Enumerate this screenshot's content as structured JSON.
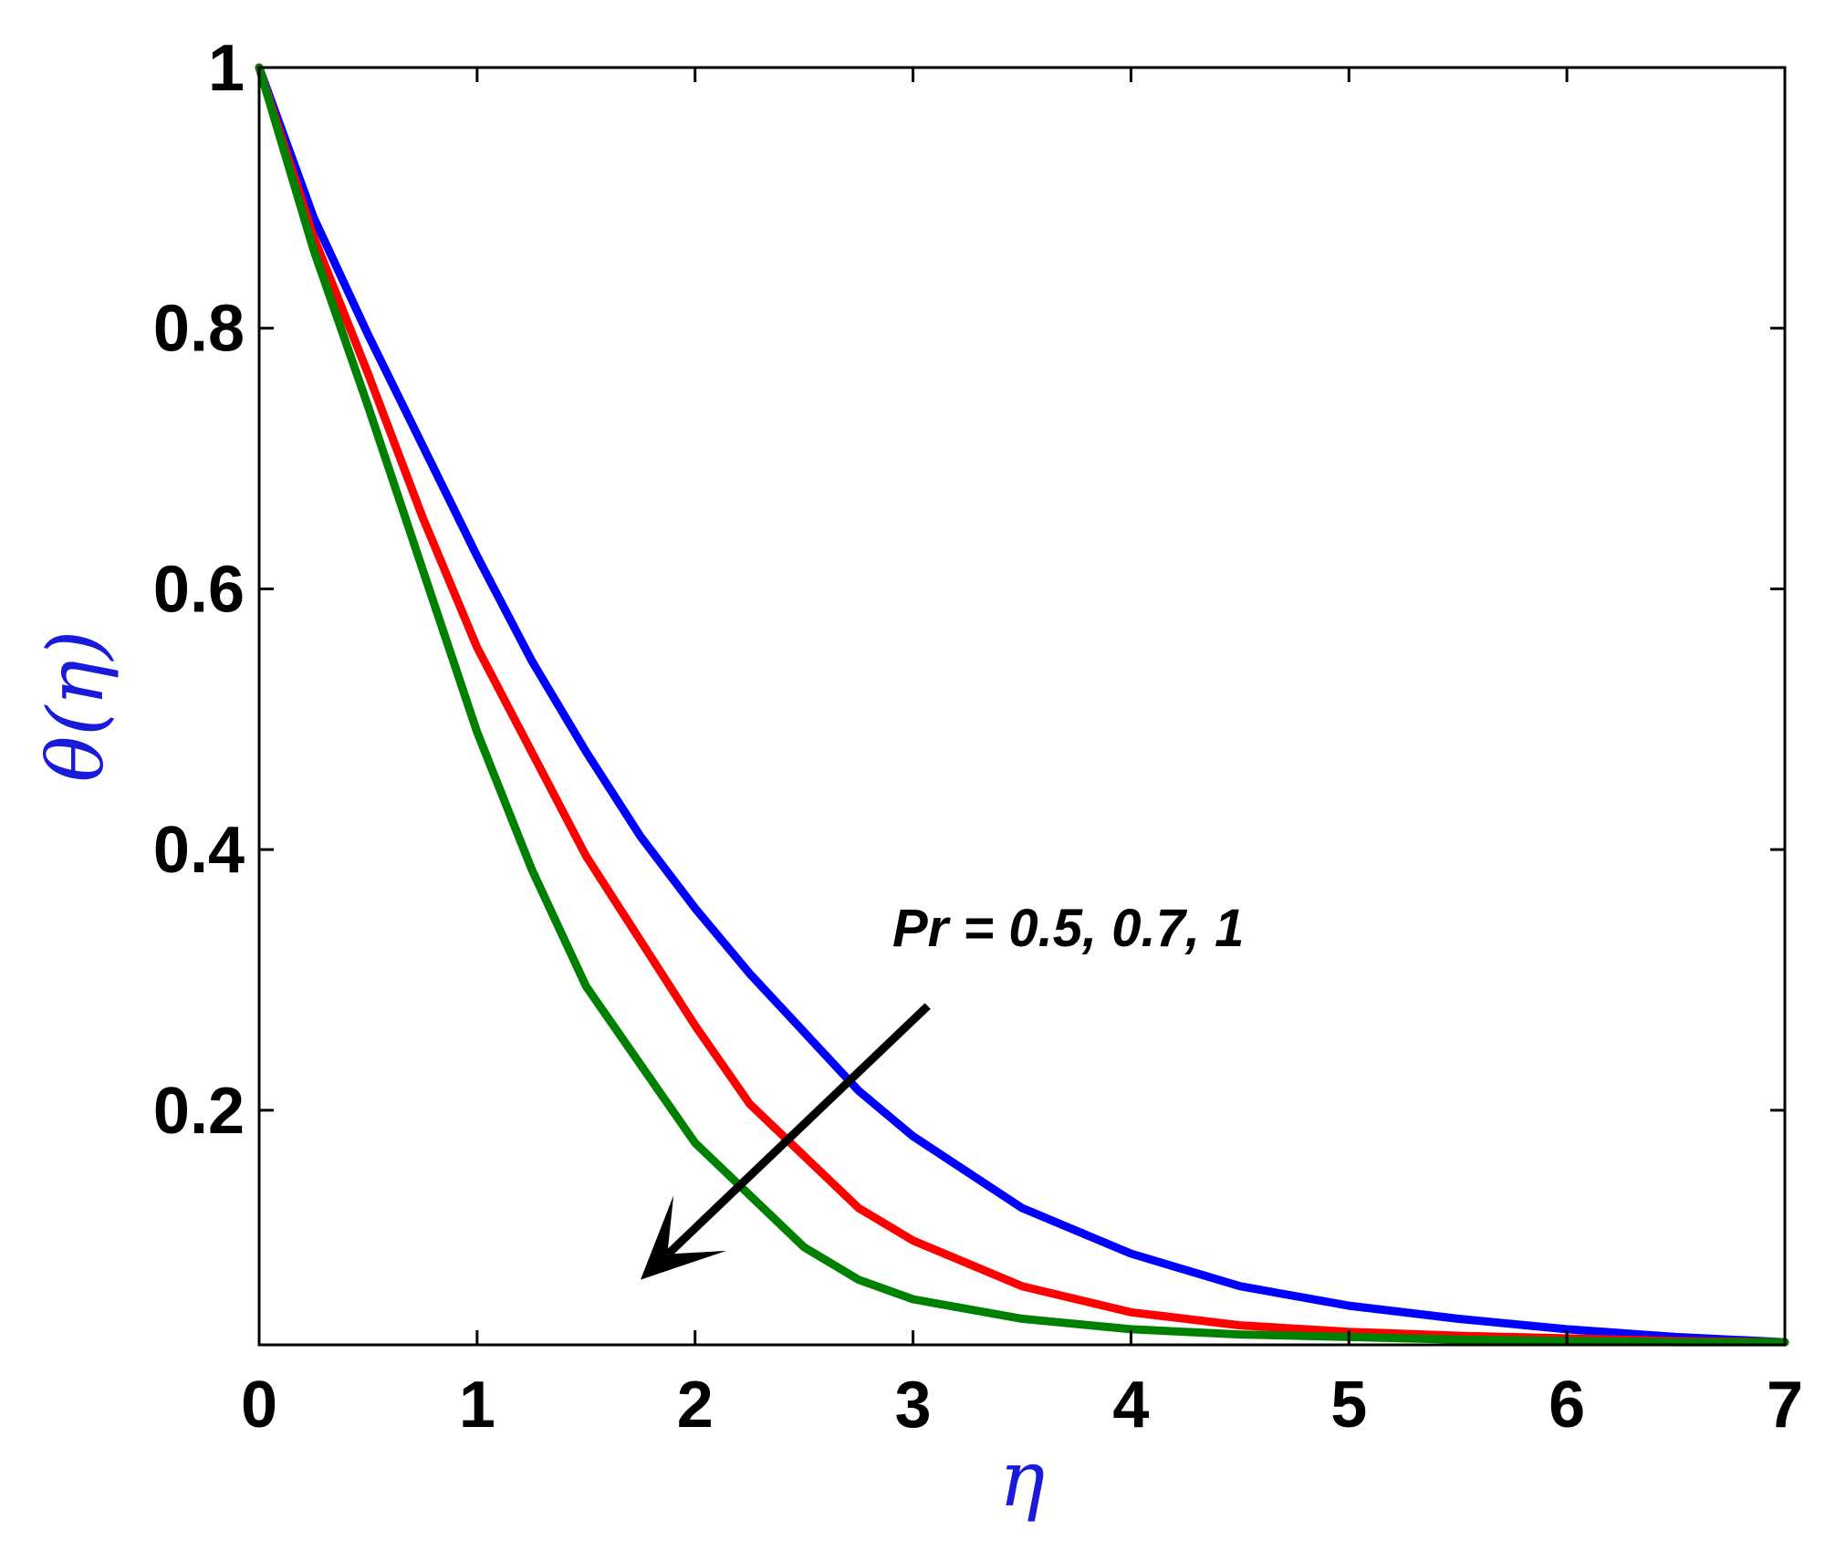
{
  "chart_data": {
    "type": "line",
    "title": "",
    "xlabel": "η",
    "ylabel": "θ(η)",
    "xlim": [
      0,
      7
    ],
    "ylim": [
      0.02,
      1
    ],
    "xticks": [
      0,
      1,
      2,
      3,
      4,
      5,
      6,
      7
    ],
    "xtick_labels": [
      "0",
      "1",
      "2",
      "3",
      "4",
      "5",
      "6",
      "7"
    ],
    "yticks": [
      0.2,
      0.4,
      0.6,
      0.8,
      1
    ],
    "ytick_labels": [
      "0.2",
      "0.4",
      "0.6",
      "0.8",
      "1"
    ],
    "grid": false,
    "legend": "none",
    "x": [
      0,
      0.25,
      0.5,
      0.75,
      1,
      1.25,
      1.5,
      1.75,
      2,
      2.25,
      2.5,
      2.75,
      3,
      3.5,
      4,
      4.5,
      5,
      5.5,
      6,
      6.5,
      7
    ],
    "series": [
      {
        "color": "#0000ff",
        "values": [
          1.0,
          0.885,
          0.795,
          0.71,
          0.625,
          0.545,
          0.475,
          0.41,
          0.355,
          0.305,
          0.26,
          0.215,
          0.18,
          0.125,
          0.09,
          0.065,
          0.05,
          0.04,
          0.032,
          0.026,
          0.022
        ]
      },
      {
        "color": "#ff0000",
        "values": [
          1.0,
          0.87,
          0.765,
          0.655,
          0.555,
          0.475,
          0.395,
          0.33,
          0.265,
          0.205,
          0.165,
          0.125,
          0.1,
          0.065,
          0.045,
          0.035,
          0.03,
          0.027,
          0.025,
          0.023,
          0.022
        ]
      },
      {
        "color": "#008000",
        "values": [
          1.0,
          0.86,
          0.74,
          0.615,
          0.49,
          0.385,
          0.295,
          0.235,
          0.175,
          0.135,
          0.095,
          0.07,
          0.055,
          0.04,
          0.032,
          0.028,
          0.026,
          0.024,
          0.023,
          0.022,
          0.022
        ]
      }
    ],
    "annotation": {
      "text": "Pr = 0.5, 0.7, 1",
      "arrow_from": [
        2.9,
        0.28
      ],
      "arrow_to": [
        1.75,
        0.07
      ]
    }
  }
}
